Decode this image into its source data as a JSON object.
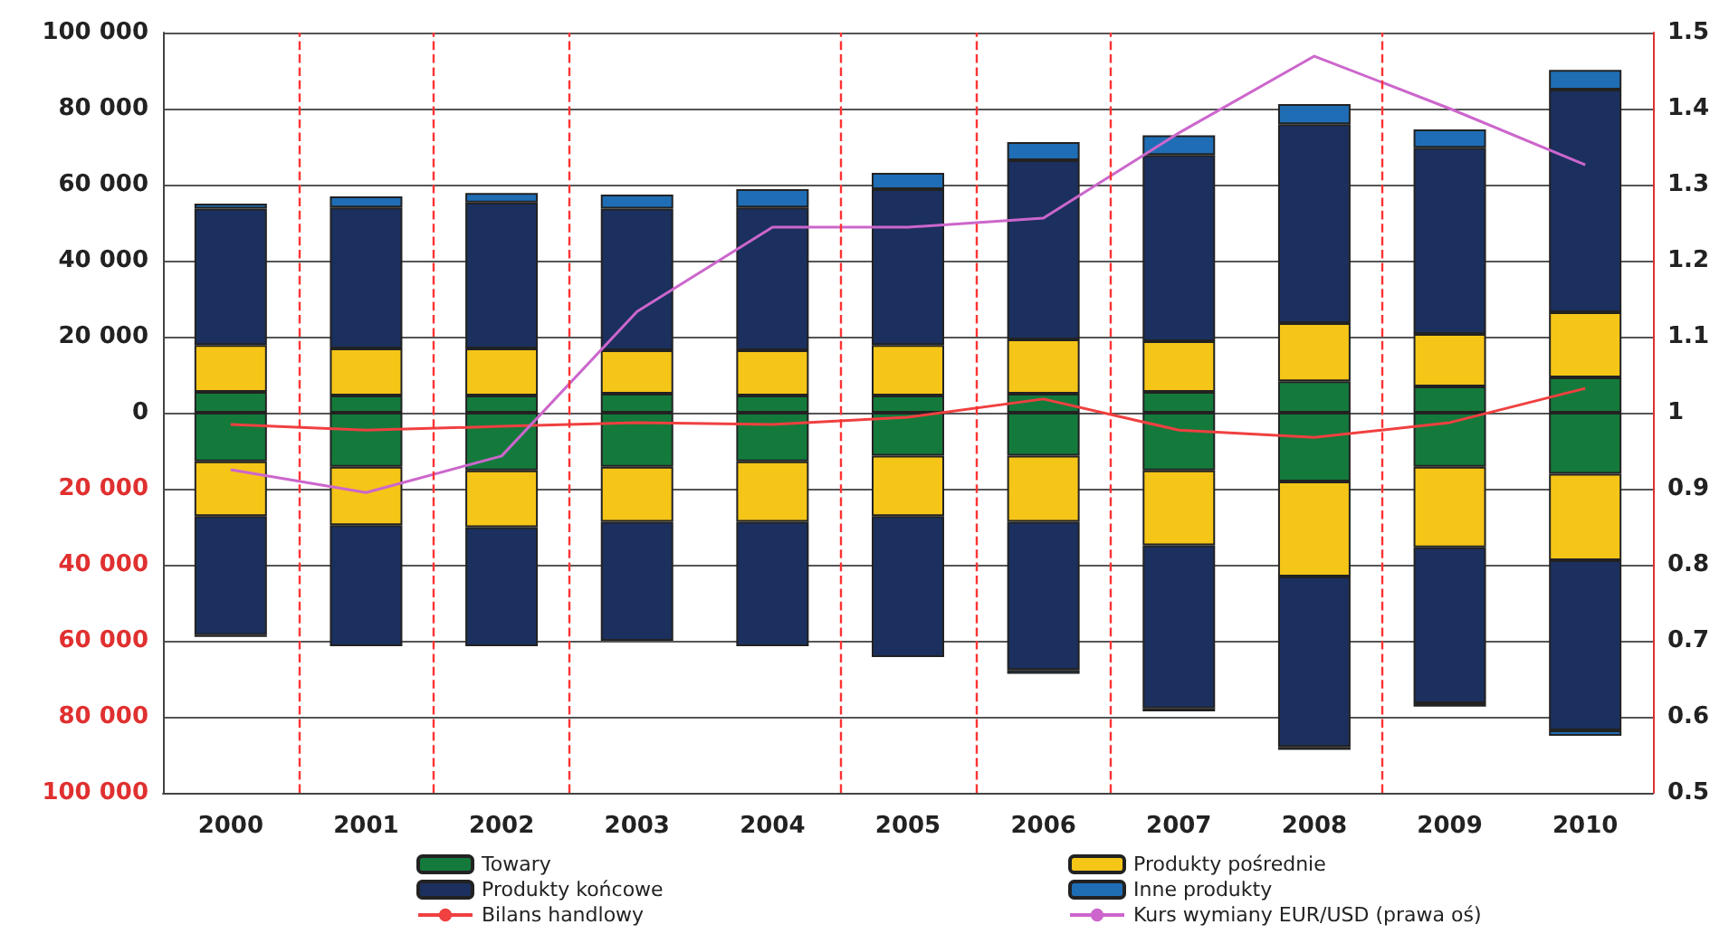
{
  "chart_data": {
    "type": "bar",
    "stacked": true,
    "x": [
      2000,
      2001,
      2002,
      2003,
      2004,
      2005,
      2006,
      2007,
      2008,
      2009,
      2010
    ],
    "xlim": [
      1999.5,
      2010.5
    ],
    "xticks": [
      2000,
      2001,
      2002,
      2003,
      2004,
      2005,
      2006,
      2007,
      2008,
      2009,
      2010
    ],
    "ylim": [
      -100000,
      100000
    ],
    "yticks": [
      {
        "value": -100000,
        "label": "100 000"
      },
      {
        "value": -80000,
        "label": "80 000"
      },
      {
        "value": -60000,
        "label": "60 000"
      },
      {
        "value": -40000,
        "label": "40 000"
      },
      {
        "value": -20000,
        "label": "20 000"
      },
      0,
      {
        "value": 20000,
        "label": "20 000"
      },
      {
        "value": 40000,
        "label": "40 000"
      },
      {
        "value": 60000,
        "label": "60 000"
      },
      {
        "value": 80000,
        "label": "80 000"
      },
      {
        "value": 100000,
        "label": "100 000"
      }
    ],
    "y2lim": [
      0.5,
      1.5
    ],
    "y2ticks": [
      0.5,
      0.6,
      0.7,
      0.8,
      0.9,
      1,
      1.1,
      1.2,
      1.3,
      1.4,
      1.5
    ],
    "grid": "y",
    "legend": "bottom",
    "marker": "none",
    "series": [
      {
        "name": "Towary",
        "color": "#147a3c",
        "values": [
          5500,
          4500,
          4500,
          5000,
          4500,
          4500,
          5000,
          5500,
          8300,
          6900,
          9300
        ]
      },
      {
        "name": "Produkty pośrednie",
        "color": "#f5c518",
        "values": [
          12300,
          12400,
          12400,
          11400,
          11900,
          13300,
          14300,
          13300,
          15300,
          13800,
          17100
        ]
      },
      {
        "name": "Produkty końcowe",
        "color": "#1b305e",
        "values": [
          35900,
          37100,
          38400,
          37300,
          37600,
          41000,
          47100,
          49000,
          52300,
          49000,
          58600
        ]
      },
      {
        "name": "Inne produkty",
        "color": "#1f6db5",
        "values": [
          1300,
          2900,
          2500,
          3700,
          4800,
          4300,
          4800,
          5200,
          5300,
          4800,
          5200
        ]
      },
      {
        "color": "#147a3c",
        "values": [
          -12800,
          -14200,
          -15200,
          -14200,
          -12800,
          -11300,
          -11300,
          -15200,
          -18100,
          -14200,
          -16100
        ]
      },
      {
        "color": "#f5c518",
        "values": [
          -14400,
          -15400,
          -14900,
          -14500,
          -15900,
          -15900,
          -17400,
          -19700,
          -25000,
          -21200,
          -22700
        ]
      },
      {
        "color": "#1b305e",
        "values": [
          -31300,
          -31800,
          -31300,
          -31300,
          -32700,
          -37100,
          -39000,
          -42900,
          -44800,
          -41000,
          -44800
        ]
      },
      {
        "color": "#1f6db5",
        "values": [
          -500,
          null,
          null,
          null,
          null,
          null,
          -1000,
          -800,
          -800,
          -900,
          -1400
        ]
      },
      {
        "name": "Bilans handlowy",
        "type": "line",
        "color": "#f04040",
        "values": [
          -3100,
          -4600,
          -3600,
          -2600,
          -3100,
          -1200,
          3600,
          -4600,
          -6500,
          -2600,
          6400
        ]
      },
      {
        "name": "Kurs wymiany EUR/USD (prawa oś)",
        "type": "line",
        "axis": "y2",
        "color": "#cc66cc",
        "values": [
          0.925,
          0.895,
          0.943,
          1.133,
          1.244,
          1.244,
          1.256,
          1.368,
          1.469,
          1.4,
          1.326
        ]
      }
    ],
    "ref_lines": [
      {
        "axis": "x",
        "value": 2000.5,
        "color": "#ff3333",
        "line_style": "dashed"
      },
      {
        "axis": "x",
        "value": 2001.5,
        "color": "#ff3333",
        "line_style": "dashed"
      },
      {
        "axis": "x",
        "value": 2002.5,
        "color": "#ff3333",
        "line_style": "dashed"
      },
      {
        "axis": "x",
        "value": 2004.5,
        "color": "#ff3333",
        "line_style": "dashed"
      },
      {
        "axis": "x",
        "value": 2005.5,
        "color": "#ff3333",
        "line_style": "dashed"
      },
      {
        "axis": "x",
        "value": 2006.5,
        "color": "#ff3333",
        "line_style": "dashed"
      },
      {
        "axis": "x",
        "value": 2008.5,
        "color": "#ff3333",
        "line_style": "dashed"
      }
    ]
  }
}
